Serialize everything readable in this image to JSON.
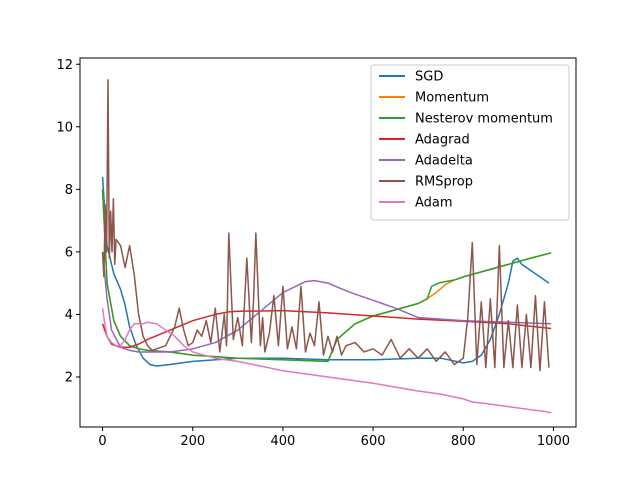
{
  "chart_data": {
    "type": "line",
    "title": "",
    "xlabel": "",
    "ylabel": "",
    "xlim": [
      -50,
      1050
    ],
    "ylim": [
      0.4,
      12.2
    ],
    "xticks": [
      0,
      200,
      400,
      600,
      800,
      1000
    ],
    "yticks": [
      2,
      4,
      6,
      8,
      10,
      12
    ],
    "grid": false,
    "legend_position": "top-right",
    "series": [
      {
        "name": "SGD",
        "color": "#1f77b4",
        "x": [
          0,
          10,
          25,
          40,
          50,
          60,
          75,
          90,
          105,
          120,
          150,
          200,
          300,
          400,
          500,
          600,
          700,
          750,
          800,
          820,
          840,
          860,
          880,
          900,
          910,
          920,
          930,
          950,
          970,
          990
        ],
        "y": [
          8.4,
          6.2,
          5.3,
          4.8,
          4.3,
          3.6,
          3.0,
          2.6,
          2.4,
          2.35,
          2.4,
          2.5,
          2.6,
          2.6,
          2.55,
          2.55,
          2.6,
          2.6,
          2.45,
          2.5,
          2.7,
          3.2,
          4.0,
          5.0,
          5.7,
          5.8,
          5.6,
          5.4,
          5.2,
          5.0
        ]
      },
      {
        "name": "Momentum",
        "color": "#ff7f0e",
        "x": [
          0,
          10,
          25,
          40,
          60,
          80,
          100,
          150,
          200,
          300,
          400,
          500,
          520,
          560,
          600,
          650,
          700,
          720,
          740,
          760,
          780,
          800,
          850,
          900,
          950,
          995
        ],
        "y": [
          8.0,
          5.0,
          3.8,
          3.3,
          3.0,
          2.9,
          2.85,
          2.8,
          2.7,
          2.6,
          2.55,
          2.5,
          3.2,
          3.7,
          3.95,
          4.15,
          4.35,
          4.5,
          4.7,
          4.95,
          5.1,
          5.2,
          5.4,
          5.6,
          5.8,
          5.97
        ]
      },
      {
        "name": "Nesterov momentum",
        "color": "#2ca02c",
        "x": [
          0,
          10,
          25,
          40,
          60,
          80,
          100,
          150,
          200,
          300,
          400,
          500,
          520,
          560,
          600,
          650,
          700,
          720,
          730,
          745,
          760,
          780,
          800,
          850,
          900,
          950,
          995
        ],
        "y": [
          8.0,
          5.0,
          3.8,
          3.3,
          3.0,
          2.9,
          2.85,
          2.8,
          2.7,
          2.6,
          2.55,
          2.5,
          3.2,
          3.7,
          3.95,
          4.15,
          4.35,
          4.5,
          4.9,
          5.0,
          5.05,
          5.1,
          5.2,
          5.4,
          5.6,
          5.8,
          5.97
        ]
      },
      {
        "name": "Adagrad",
        "color": "#d62728",
        "x": [
          0,
          10,
          20,
          40,
          60,
          80,
          100,
          150,
          200,
          250,
          280,
          300,
          400,
          500,
          600,
          700,
          800,
          900,
          995
        ],
        "y": [
          3.7,
          3.3,
          3.05,
          2.95,
          2.95,
          3.05,
          3.2,
          3.5,
          3.8,
          4.0,
          4.08,
          4.1,
          4.12,
          4.05,
          3.95,
          3.85,
          3.78,
          3.7,
          3.55
        ]
      },
      {
        "name": "Adadelta",
        "color": "#9467bd",
        "x": [
          0,
          10,
          20,
          40,
          60,
          80,
          100,
          150,
          200,
          250,
          300,
          350,
          400,
          450,
          470,
          500,
          550,
          600,
          650,
          700,
          750,
          800,
          900,
          995
        ],
        "y": [
          6.0,
          4.5,
          3.5,
          2.95,
          2.85,
          2.8,
          2.8,
          2.8,
          2.9,
          3.1,
          3.5,
          4.1,
          4.7,
          5.05,
          5.08,
          5.0,
          4.7,
          4.45,
          4.2,
          3.9,
          3.85,
          3.8,
          3.75,
          3.7
        ]
      },
      {
        "name": "RMSprop",
        "color": "#8c564b",
        "x": [
          0,
          3,
          6,
          9,
          12,
          15,
          18,
          21,
          24,
          27,
          30,
          40,
          50,
          60,
          70,
          80,
          90,
          100,
          110,
          120,
          140,
          160,
          170,
          180,
          190,
          200,
          210,
          220,
          230,
          240,
          250,
          260,
          270,
          275,
          280,
          290,
          300,
          310,
          320,
          330,
          335,
          340,
          350,
          355,
          360,
          370,
          380,
          390,
          400,
          410,
          420,
          430,
          440,
          450,
          460,
          470,
          480,
          490,
          500,
          510,
          520,
          530,
          540,
          560,
          580,
          600,
          620,
          640,
          660,
          680,
          700,
          720,
          740,
          760,
          780,
          800,
          810,
          820,
          830,
          840,
          850,
          860,
          870,
          880,
          890,
          900,
          910,
          920,
          930,
          940,
          950,
          960,
          970,
          980,
          990
        ],
        "y": [
          6.0,
          5.2,
          7.5,
          6.0,
          11.5,
          5.8,
          7.3,
          6.0,
          7.7,
          5.6,
          6.4,
          6.2,
          5.5,
          6.2,
          5.3,
          4.0,
          3.3,
          3.0,
          2.85,
          2.9,
          3.0,
          3.6,
          4.2,
          3.5,
          3.0,
          3.1,
          3.5,
          3.3,
          3.8,
          3.1,
          4.2,
          2.8,
          4.0,
          3.0,
          6.6,
          3.2,
          3.9,
          3.0,
          5.8,
          3.1,
          4.5,
          6.6,
          3.0,
          3.9,
          2.8,
          3.4,
          4.6,
          3.0,
          4.9,
          2.9,
          3.6,
          2.9,
          4.9,
          2.8,
          3.4,
          3.0,
          4.4,
          2.7,
          3.3,
          2.8,
          3.3,
          2.7,
          3.0,
          3.1,
          2.8,
          2.9,
          2.7,
          3.2,
          2.6,
          2.9,
          2.6,
          2.9,
          2.5,
          2.8,
          2.4,
          2.6,
          3.9,
          6.3,
          2.4,
          4.4,
          2.3,
          4.5,
          2.3,
          6.2,
          2.3,
          3.8,
          2.3,
          4.3,
          2.3,
          4.0,
          2.3,
          4.6,
          2.2,
          4.4,
          2.3
        ]
      },
      {
        "name": "Adam",
        "color": "#e377c2",
        "x": [
          0,
          5,
          10,
          20,
          30,
          40,
          50,
          60,
          70,
          80,
          90,
          100,
          120,
          140,
          160,
          180,
          200,
          250,
          300,
          350,
          400,
          450,
          500,
          550,
          600,
          620,
          640,
          660,
          680,
          700,
          750,
          800,
          820,
          850,
          900,
          950,
          980,
          995
        ],
        "y": [
          4.2,
          3.7,
          3.3,
          3.1,
          3.0,
          3.0,
          3.2,
          3.5,
          3.7,
          3.7,
          3.7,
          3.75,
          3.7,
          3.5,
          3.3,
          3.0,
          2.8,
          2.6,
          2.5,
          2.35,
          2.2,
          2.1,
          2.0,
          1.9,
          1.8,
          1.75,
          1.7,
          1.65,
          1.6,
          1.55,
          1.45,
          1.3,
          1.2,
          1.15,
          1.05,
          0.95,
          0.9,
          0.85
        ]
      }
    ]
  }
}
